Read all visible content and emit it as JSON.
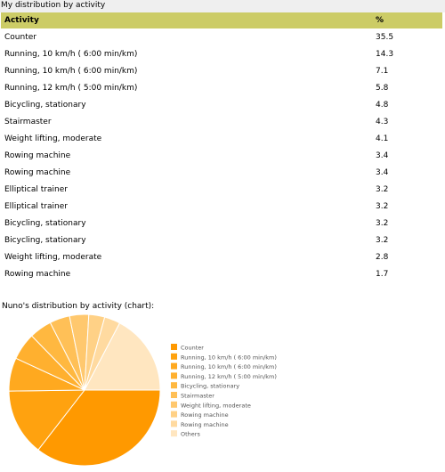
{
  "page": {
    "section_title": "My distribution by activity"
  },
  "table": {
    "headers": {
      "activity": "Activity",
      "pct": "%"
    },
    "rows": [
      {
        "activity": "Counter",
        "pct": "35.5"
      },
      {
        "activity": "Running, 10 km/h ( 6:00 min/km)",
        "pct": "14.3"
      },
      {
        "activity": "Running, 10 km/h ( 6:00 min/km)",
        "pct": "7.1"
      },
      {
        "activity": "Running, 12 km/h ( 5:00 min/km)",
        "pct": "5.8"
      },
      {
        "activity": "Bicycling, stationary",
        "pct": "4.8"
      },
      {
        "activity": "Stairmaster",
        "pct": "4.3"
      },
      {
        "activity": "Weight lifting, moderate",
        "pct": "4.1"
      },
      {
        "activity": "Rowing machine",
        "pct": "3.4"
      },
      {
        "activity": "Rowing machine",
        "pct": "3.4"
      },
      {
        "activity": "Elliptical trainer",
        "pct": "3.2"
      },
      {
        "activity": "Elliptical trainer",
        "pct": "3.2"
      },
      {
        "activity": "Bicycling, stationary",
        "pct": "3.2"
      },
      {
        "activity": "Bicycling, stationary",
        "pct": "3.2"
      },
      {
        "activity": "Weight lifting, moderate",
        "pct": "2.8"
      },
      {
        "activity": "Rowing machine",
        "pct": "1.7"
      }
    ]
  },
  "chart_data": {
    "type": "pie",
    "title": "Nuno's distribution by activity (chart):",
    "categories": [
      "Counter",
      "Running, 10 km/h ( 6:00 min/km)",
      "Running, 10 km/h ( 6:00 min/km)",
      "Running, 12 km/h ( 5:00 min/km)",
      "Bicycling, stationary",
      "Stairmaster",
      "Weight lifting, moderate",
      "Rowing machine",
      "Rowing machine",
      "Others"
    ],
    "values": [
      35.5,
      14.3,
      7.1,
      5.8,
      4.8,
      4.3,
      4.1,
      3.4,
      3.4,
      17.3
    ],
    "colors": [
      "#ff9900",
      "#ffa20f",
      "#ffa91f",
      "#ffb02f",
      "#ffb840",
      "#ffc057",
      "#ffc86e",
      "#ffd186",
      "#ffdaa0",
      "#ffe6c0"
    ],
    "legend_position": "right",
    "slice_border_color": "#ffffff"
  }
}
